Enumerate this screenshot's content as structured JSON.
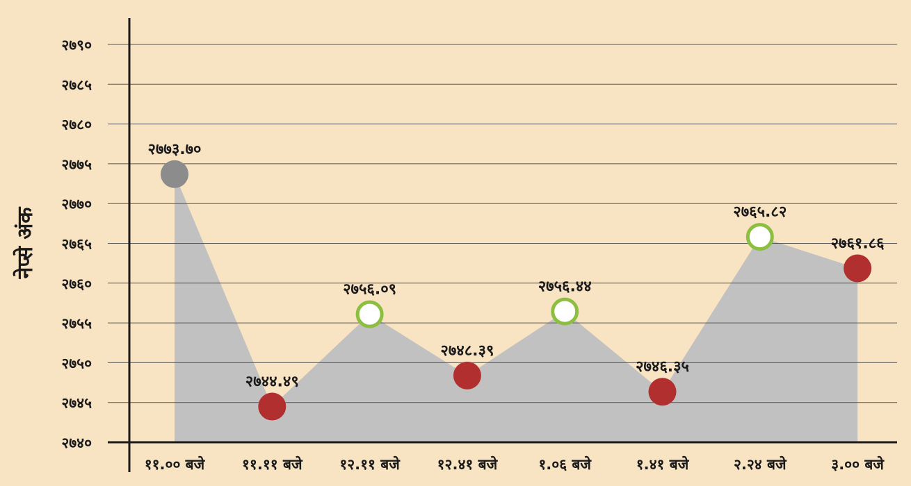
{
  "chart_data": {
    "type": "area",
    "title": "",
    "ylabel": "नेप्से अंक",
    "xlabel": "",
    "ylim": [
      2740,
      2790
    ],
    "yticks": [
      2740,
      2745,
      2750,
      2755,
      2760,
      2765,
      2770,
      2775,
      2780,
      2785,
      2790
    ],
    "ytick_labels": [
      "२७४०",
      "२७४५",
      "२७५०",
      "२७५५",
      "२७६०",
      "२७६५",
      "२७७०",
      "२७७५",
      "२७८०",
      "२७८५",
      "२७९०"
    ],
    "categories": [
      "११.०० बजे",
      "११.११ बजे",
      "१२.११ बजे",
      "१२.४१ बजे",
      "१.०६ बजे",
      "१.४१ बजे",
      "२.२४ बजे",
      "३.०० बजे"
    ],
    "values": [
      2773.7,
      2744.49,
      2756.09,
      2748.39,
      2756.44,
      2746.35,
      2765.82,
      2761.86
    ],
    "value_labels": [
      "२७७३.७०",
      "२७४४.४९",
      "२७५६.०९",
      "२७४८.३९",
      "२७५६.४४",
      "२७४६.३५",
      "२७६५.८२",
      "२७६१.८६"
    ],
    "marker_types": [
      "neutral",
      "down",
      "up",
      "down",
      "up",
      "down",
      "up",
      "down"
    ],
    "grid": true,
    "colors": {
      "background": "#f8e3c3",
      "area": "#c1c1c1",
      "grid": "#555555",
      "axis": "#1a1a1a",
      "neutral": "#8c8c8c",
      "down": "#b22f2f",
      "up_ring": "#8cbf3f",
      "up_fill": "#ffffff"
    }
  }
}
